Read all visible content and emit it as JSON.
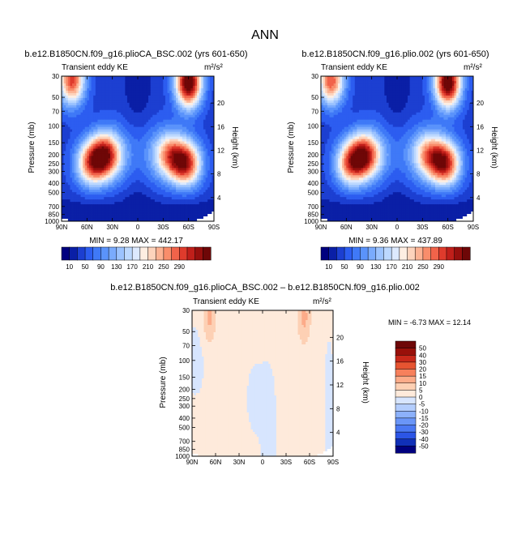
{
  "title": "ANN",
  "colors": {
    "levels_top": [
      "#00007f",
      "#0a1fa6",
      "#1c3fd1",
      "#2c5df0",
      "#3f79f7",
      "#5a93fb",
      "#7aabfd",
      "#9cc3fe",
      "#bcd8fe",
      "#dce9fe",
      "#fdeee2",
      "#fdd3bc",
      "#fcb293",
      "#f98d6b",
      "#f1634a",
      "#df3b2c",
      "#c01f1a",
      "#970f0d",
      "#6e0707"
    ],
    "levels_diff": [
      "#00007f",
      "#1030b8",
      "#2c55e6",
      "#4a78f3",
      "#6a96f8",
      "#8cb1fb",
      "#b3cdfd",
      "#d7e5fe",
      "#feeadb",
      "#fdd0b4",
      "#fcab89",
      "#f7805c",
      "#e65431",
      "#c8281a",
      "#99100a",
      "#6e0707"
    ]
  },
  "panels": [
    {
      "run_label": "b.e12.B1850CN.f09_g16.plioCA_BSC.002 (yrs 601-650)",
      "field_label": "Transient eddy KE",
      "units_label": "m²/s²",
      "y_axis_label": "Pressure (mb)",
      "y2_axis_label": "Height (km)",
      "stats_label": "MIN =    9.28   MAX =  442.17",
      "colorbar_ticks": [
        "10",
        "50",
        "90",
        "130",
        "170",
        "210",
        "250",
        "290"
      ]
    },
    {
      "run_label": "b.e12.B1850CN.f09_g16.plio.002 (yrs 601-650)",
      "field_label": "Transient eddy KE",
      "units_label": "m²/s²",
      "y_axis_label": "Pressure (mb)",
      "y2_axis_label": "Height (km)",
      "stats_label": "MIN =    9.36   MAX =  437.89",
      "colorbar_ticks": [
        "10",
        "50",
        "90",
        "130",
        "170",
        "210",
        "250",
        "290"
      ]
    }
  ],
  "diff_panel": {
    "title": "b.e12.B1850CN.f09_g16.plioCA_BSC.002 – b.e12.B1850CN.f09_g16.plio.002",
    "field_label": "Transient eddy KE",
    "units_label": "m²/s²",
    "y_axis_label": "Pressure (mb)",
    "y2_axis_label": "Height (km)",
    "stats_label": "MIN =   -6.73   MAX =   12.14",
    "colorbar_ticks": [
      "50",
      "40",
      "30",
      "20",
      "15",
      "10",
      "5",
      "0",
      "-5",
      "-10",
      "-15",
      "-20",
      "-30",
      "-40",
      "-50"
    ]
  },
  "chart_data": [
    {
      "type": "heatmap",
      "title": "b.e12.B1850CN.f09_g16.plioCA_BSC.002 (yrs 601-650)",
      "variable": "Transient eddy KE",
      "units": "m²/s²",
      "x_ticks": [
        "90N",
        "60N",
        "30N",
        "0",
        "30S",
        "60S",
        "90S"
      ],
      "x_range": [
        90,
        -90
      ],
      "y_ticks_pressure": [
        30,
        50,
        70,
        100,
        150,
        200,
        250,
        300,
        400,
        500,
        700,
        850,
        1000
      ],
      "y_axis_scale": "log",
      "y_range_mb": [
        1000,
        30
      ],
      "y2_ticks_height_km": [
        4,
        8,
        12,
        16,
        20
      ],
      "min": 9.28,
      "max": 442.17,
      "colorbar_levels": [
        10,
        50,
        90,
        130,
        170,
        210,
        250,
        290
      ],
      "maxima": [
        {
          "lat": 78,
          "p": 33,
          "value": 300
        },
        {
          "lat": 38,
          "p": 200,
          "value": 290
        },
        {
          "lat": 55,
          "p": 250,
          "value": 250
        },
        {
          "lat": -57,
          "p": 250,
          "value": 300
        },
        {
          "lat": -38,
          "p": 200,
          "value": 220
        },
        {
          "lat": -60,
          "p": 35,
          "value": 390
        }
      ]
    },
    {
      "type": "heatmap",
      "title": "b.e12.B1850CN.f09_g16.plio.002 (yrs 601-650)",
      "variable": "Transient eddy KE",
      "units": "m²/s²",
      "x_ticks": [
        "90N",
        "60N",
        "30N",
        "0",
        "30S",
        "60S",
        "90S"
      ],
      "x_range": [
        90,
        -90
      ],
      "y_ticks_pressure": [
        30,
        50,
        70,
        100,
        150,
        200,
        250,
        300,
        400,
        500,
        700,
        850,
        1000
      ],
      "y_axis_scale": "log",
      "y_range_mb": [
        1000,
        30
      ],
      "y2_ticks_height_km": [
        4,
        8,
        12,
        16,
        20
      ],
      "min": 9.36,
      "max": 437.89,
      "colorbar_levels": [
        10,
        50,
        90,
        130,
        170,
        210,
        250,
        290
      ],
      "maxima": [
        {
          "lat": 78,
          "p": 33,
          "value": 290
        },
        {
          "lat": 38,
          "p": 200,
          "value": 285
        },
        {
          "lat": 55,
          "p": 250,
          "value": 245
        },
        {
          "lat": -57,
          "p": 250,
          "value": 300
        },
        {
          "lat": -38,
          "p": 200,
          "value": 215
        },
        {
          "lat": -60,
          "p": 35,
          "value": 385
        }
      ]
    },
    {
      "type": "heatmap",
      "title": "b.e12.B1850CN.f09_g16.plioCA_BSC.002 – b.e12.B1850CN.f09_g16.plio.002",
      "variable": "Transient eddy KE",
      "units": "m²/s²",
      "x_ticks": [
        "90N",
        "60N",
        "30N",
        "0",
        "30S",
        "60S",
        "90S"
      ],
      "x_range": [
        90,
        -90
      ],
      "y_ticks_pressure": [
        30,
        50,
        70,
        100,
        150,
        200,
        250,
        300,
        400,
        500,
        700,
        850,
        1000
      ],
      "y_axis_scale": "log",
      "y_range_mb": [
        1000,
        30
      ],
      "y2_ticks_height_km": [
        4,
        8,
        12,
        16,
        20
      ],
      "min": -6.73,
      "max": 12.14,
      "colorbar_levels": [
        -50,
        -40,
        -30,
        -20,
        -15,
        -10,
        -5,
        0,
        5,
        10,
        15,
        20,
        30,
        40,
        50
      ],
      "features": [
        {
          "lat": 68,
          "p": 35,
          "value": 10
        },
        {
          "lat": -53,
          "p": 35,
          "value": 10
        },
        {
          "lat": 8,
          "p": 250,
          "value": -3
        },
        {
          "lat": 86,
          "p": 100,
          "value": -3
        }
      ]
    }
  ]
}
